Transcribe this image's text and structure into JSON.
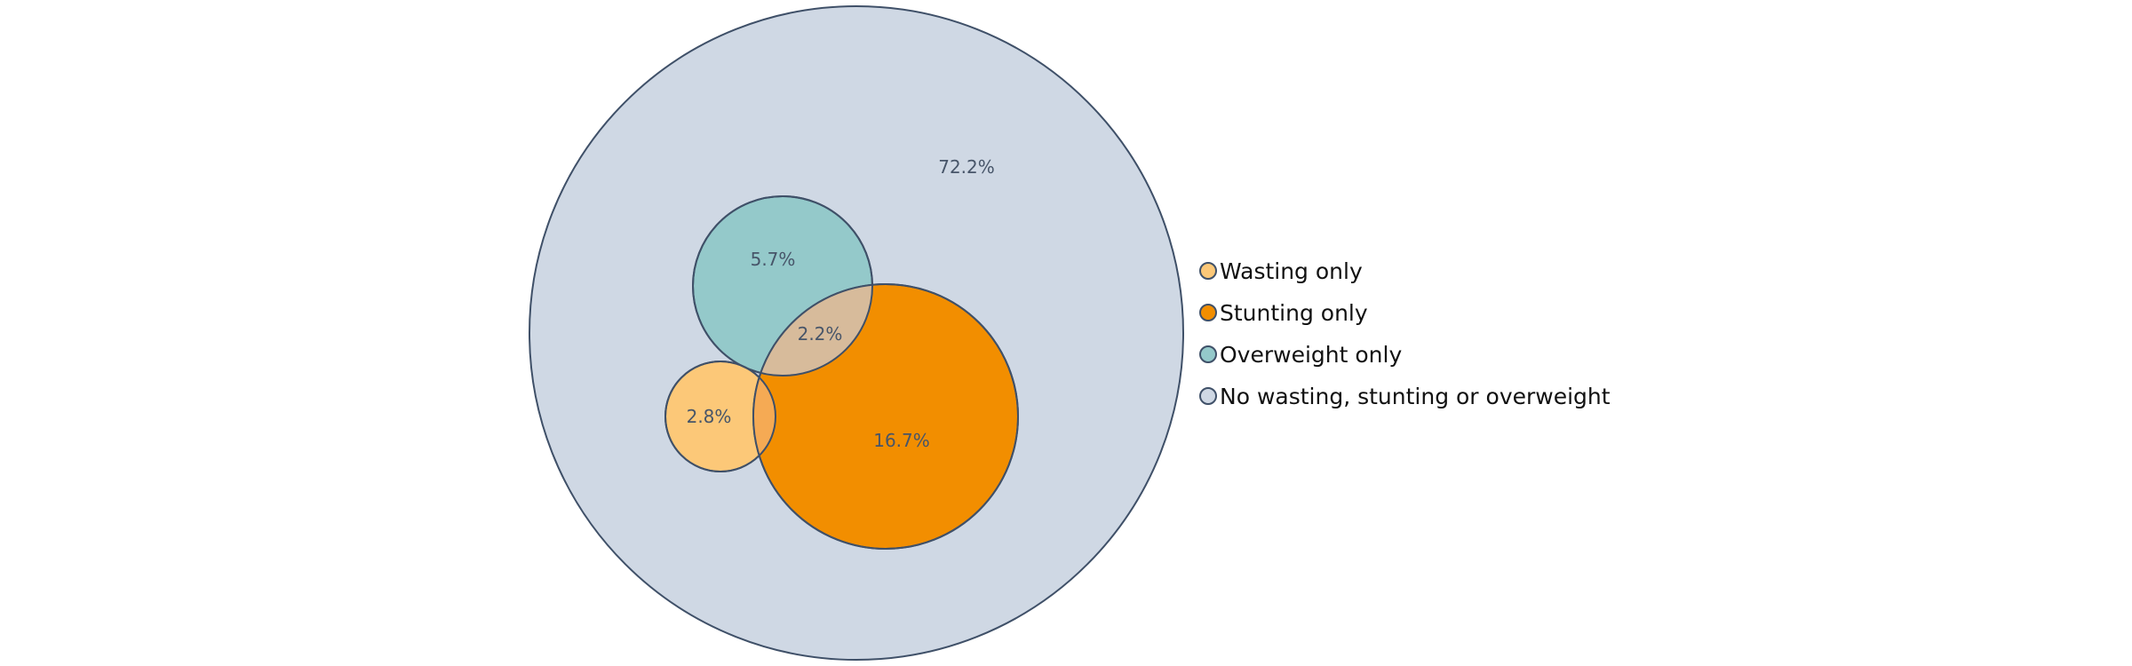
{
  "chart_data": {
    "type": "venn",
    "title": "",
    "outline_color": "#3f5068",
    "sets": [
      {
        "name": "No wasting, stunting or overweight",
        "value": 72.2,
        "color": "#cfd8e4"
      },
      {
        "name": "Overweight only",
        "value": 5.7,
        "color": "#94c9ca"
      },
      {
        "name": "Stunting only",
        "value": 16.7,
        "color": "#f28e00"
      },
      {
        "name": "Wasting only",
        "value": 2.8,
        "color": "#fcc878"
      }
    ],
    "overlaps": [
      {
        "sets": [
          "Overweight only",
          "Stunting only"
        ],
        "value": 2.2,
        "color": "#d7bb9b"
      },
      {
        "sets": [
          "Wasting only",
          "Stunting only"
        ],
        "value": null,
        "color": "#f5aa54"
      }
    ],
    "labels": [
      "72.2%",
      "5.7%",
      "2.2%",
      "2.8%",
      "16.7%"
    ],
    "legend": {
      "position": "right",
      "entries": [
        {
          "label": "Wasting only",
          "color": "#fcc878"
        },
        {
          "label": "Stunting only",
          "color": "#f28e00"
        },
        {
          "label": "Overweight only",
          "color": "#94c9ca"
        },
        {
          "label": "No wasting, stunting or overweight",
          "color": "#cfd8e4"
        }
      ]
    }
  }
}
